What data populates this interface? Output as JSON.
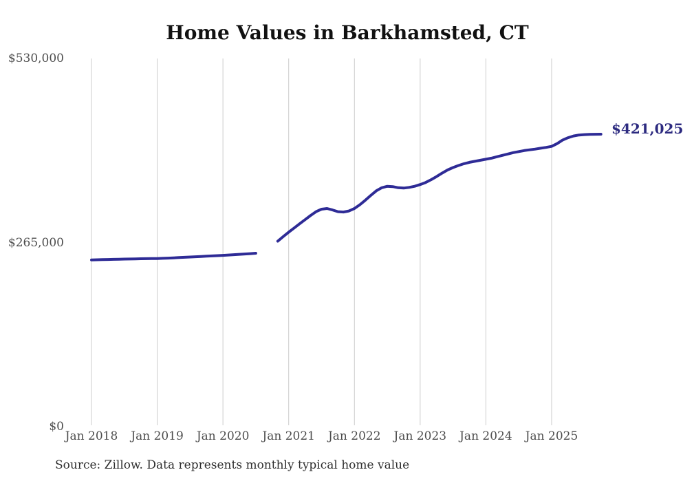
{
  "title": "Home Values in Barkhamsted, CT",
  "annotation": {
    "end_value_label": "$421,025"
  },
  "source_note": "Source: Zillow. Data represents monthly typical home value",
  "colors": {
    "line": "#2e2b96",
    "end_label": "#2d2b80",
    "gridline": "#cccccc",
    "axis_text": "#4d4d4d",
    "title_text": "#111111",
    "source_text": "#2e2e2e",
    "background": "#ffffff"
  },
  "chart_data": {
    "type": "line",
    "title": "Home Values in Barkhamsted, CT",
    "xlabel": "",
    "ylabel": "",
    "grid": "vertical-only",
    "legend": "none",
    "x_axis": {
      "ticks": [
        {
          "label": "Jan 2018",
          "t": 2018
        },
        {
          "label": "Jan 2019",
          "t": 2019
        },
        {
          "label": "Jan 2020",
          "t": 2020
        },
        {
          "label": "Jan 2021",
          "t": 2021
        },
        {
          "label": "Jan 2022",
          "t": 2022
        },
        {
          "label": "Jan 2023",
          "t": 2023
        },
        {
          "label": "Jan 2024",
          "t": 2024
        },
        {
          "label": "Jan 2025",
          "t": 2025
        }
      ]
    },
    "y_axis": {
      "range": [
        0,
        530000
      ],
      "ticks": [
        {
          "label": "$530,000",
          "value": 530000
        },
        {
          "label": "$265,000",
          "value": 265000
        },
        {
          "label": "$0",
          "value": 0
        }
      ]
    },
    "end_annotation": {
      "label": "$421,025",
      "value": 421025
    },
    "series": [
      {
        "name": "Monthly typical home value",
        "cadence": "monthly",
        "data_gap": "2020-08 through 2020-10 (no line drawn)",
        "segments": [
          {
            "start": "2018-01",
            "end": "2020-07",
            "points": [
              240000,
              240200,
              240400,
              240600,
              240800,
              241000,
              241200,
              241300,
              241500,
              241700,
              241800,
              241900,
              242000,
              242300,
              242600,
              243000,
              243400,
              243800,
              244200,
              244600,
              245000,
              245400,
              245800,
              246200,
              246600,
              247100,
              247600,
              248100,
              248600,
              249100,
              249600
            ]
          },
          {
            "start": "2020-11",
            "end": "2025-10",
            "points": [
              267000,
              273500,
              280000,
              286000,
              292000,
              298000,
              304000,
              309500,
              313000,
              314000,
              312000,
              309500,
              309000,
              310500,
              314000,
              319500,
              326000,
              333000,
              339500,
              344000,
              346000,
              345500,
              344000,
              343500,
              344500,
              346000,
              348500,
              351500,
              355500,
              360000,
              365000,
              369500,
              373000,
              376000,
              378500,
              380500,
              382000,
              383500,
              385000,
              386500,
              388500,
              390500,
              392500,
              394500,
              396000,
              397500,
              398500,
              399500,
              400800,
              402000,
              403500,
              407500,
              412500,
              416000,
              418500,
              419800,
              420400,
              420700,
              420900,
              421025
            ]
          }
        ]
      }
    ]
  }
}
